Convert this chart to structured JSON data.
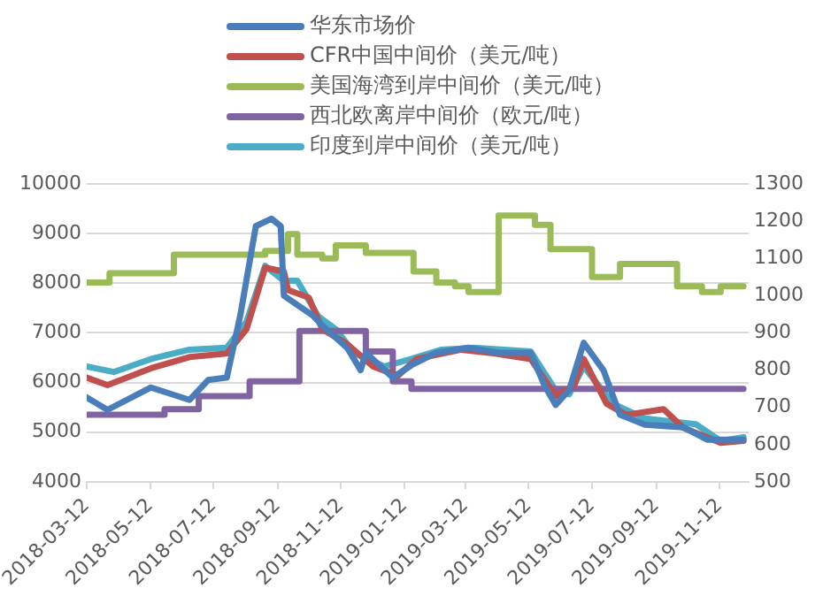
{
  "chart_data": {
    "type": "line",
    "legend": "top",
    "grid": "y",
    "xlim": [
      "2018-03-12",
      "2019-12-10"
    ],
    "xticks": [
      "2018-03-12",
      "2018-05-12",
      "2018-07-12",
      "2018-09-12",
      "2018-11-12",
      "2019-01-12",
      "2019-03-12",
      "2019-05-12",
      "2019-07-12",
      "2019-09-12",
      "2019-11-12"
    ],
    "ylim": [
      4000,
      10000
    ],
    "yticks": [
      4000,
      5000,
      6000,
      7000,
      8000,
      9000,
      10000
    ],
    "y2lim": [
      500,
      1300
    ],
    "y2ticks": [
      500,
      600,
      700,
      800,
      900,
      1000,
      1100,
      1200,
      1300
    ],
    "series": [
      {
        "name": "华东市场价",
        "color": "#4a7ebb",
        "x": [
          "2018-03-12",
          "2018-04-01",
          "2018-05-13",
          "2018-06-19",
          "2018-07-07",
          "2018-07-25",
          "2018-08-07",
          "2018-08-22",
          "2018-09-06",
          "2018-09-15",
          "2018-09-18",
          "2018-10-16",
          "2018-10-25",
          "2018-11-18",
          "2018-12-01",
          "2018-12-06",
          "2019-01-01",
          "2019-01-19",
          "2019-02-12",
          "2019-03-15",
          "2019-04-13",
          "2019-05-14",
          "2019-05-27",
          "2019-06-07",
          "2019-06-20",
          "2019-07-04",
          "2019-07-23",
          "2019-08-08",
          "2019-09-01",
          "2019-10-08",
          "2019-10-31",
          "2019-12-05"
        ],
        "values": [
          5700,
          5450,
          5900,
          5650,
          6050,
          6100,
          7350,
          9150,
          9300,
          9150,
          7750,
          7350,
          7150,
          6700,
          6250,
          6600,
          6100,
          6350,
          6600,
          6700,
          6600,
          6600,
          5950,
          5550,
          5850,
          6800,
          6250,
          5350,
          5150,
          5100,
          4850,
          4850
        ]
      },
      {
        "name": "CFR中国中间价（美元/吨）",
        "color": "#c0504d",
        "axis": "y2",
        "x": [
          "2018-03-12",
          "2018-04-01",
          "2018-05-13",
          "2018-06-19",
          "2018-07-25",
          "2018-08-13",
          "2018-08-31",
          "2018-09-18",
          "2018-09-22",
          "2018-10-12",
          "2018-10-25",
          "2018-11-18",
          "2018-12-13",
          "2019-01-06",
          "2019-01-24",
          "2019-03-08",
          "2019-04-08",
          "2019-05-14",
          "2019-06-07",
          "2019-06-25",
          "2019-07-04",
          "2019-07-26",
          "2019-08-14",
          "2019-09-19",
          "2019-10-08",
          "2019-11-13",
          "2019-12-05"
        ],
        "values": [
          780,
          760,
          805,
          835,
          845,
          910,
          1075,
          1065,
          1015,
          995,
          910,
          870,
          810,
          785,
          830,
          855,
          845,
          830,
          730,
          760,
          830,
          710,
          680,
          695,
          645,
          605,
          610
        ]
      },
      {
        "name": "美国海湾到岸中间价（美元/吨）",
        "type": "step",
        "color": "#9bbb59",
        "axis": "y2",
        "x": [
          "2018-03-12",
          "2018-04-03",
          "2018-06-04",
          "2018-08-31",
          "2018-09-22",
          "2018-10-01",
          "2018-10-25",
          "2018-11-07",
          "2018-12-06",
          "2019-01-21",
          "2019-02-12",
          "2019-03-02",
          "2019-03-15",
          "2019-04-13",
          "2019-05-18",
          "2019-06-02",
          "2019-07-12",
          "2019-08-08",
          "2019-10-02",
          "2019-10-26",
          "2019-11-13",
          "2019-12-05"
        ],
        "values": [
          1035,
          1060,
          1110,
          1120,
          1165,
          1110,
          1100,
          1135,
          1115,
          1065,
          1035,
          1025,
          1010,
          1215,
          1190,
          1125,
          1050,
          1085,
          1025,
          1010,
          1025,
          1025
        ]
      },
      {
        "name": "西北欧离岸中间价（欧元/吨）",
        "type": "step",
        "color": "#8064a2",
        "axis": "y2",
        "x": [
          "2018-03-12",
          "2018-05-26",
          "2018-06-28",
          "2018-08-16",
          "2018-10-03",
          "2018-12-06",
          "2019-01-01",
          "2019-01-19",
          "2019-12-05"
        ],
        "values": [
          680,
          695,
          730,
          770,
          905,
          850,
          770,
          750,
          750
        ]
      },
      {
        "name": "印度到岸中间价（美元/吨）",
        "color": "#4bacc6",
        "axis": "y2",
        "x": [
          "2018-03-12",
          "2018-04-07",
          "2018-05-13",
          "2018-06-19",
          "2018-07-25",
          "2018-08-13",
          "2018-08-31",
          "2018-09-18",
          "2018-10-01",
          "2018-10-21",
          "2018-11-07",
          "2018-11-25",
          "2018-12-24",
          "2019-01-19",
          "2019-02-17",
          "2019-03-20",
          "2019-05-14",
          "2019-06-07",
          "2019-06-20",
          "2019-07-04",
          "2019-08-01",
          "2019-09-01",
          "2019-10-20",
          "2019-11-13",
          "2019-12-05"
        ],
        "values": [
          810,
          795,
          830,
          855,
          860,
          930,
          1080,
          1040,
          1040,
          945,
          910,
          845,
          810,
          830,
          855,
          860,
          850,
          745,
          735,
          810,
          710,
          670,
          655,
          610,
          620
        ]
      }
    ]
  }
}
